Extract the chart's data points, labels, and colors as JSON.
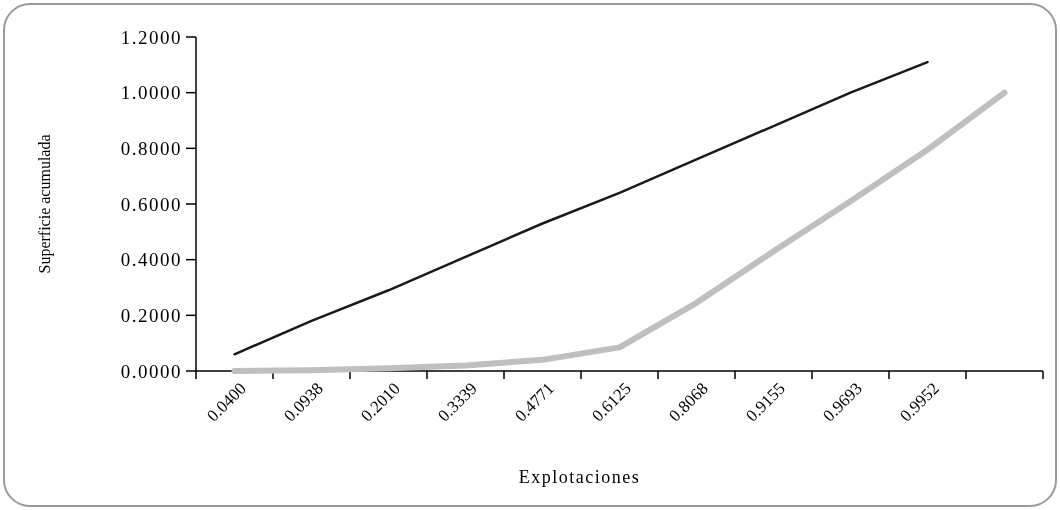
{
  "chart_data": {
    "type": "line",
    "xlabel": "Explotaciones",
    "ylabel": "Superficie acumulada",
    "categories": [
      "0.0400",
      "0.0938",
      "0.2010",
      "0.3339",
      "0.4771",
      "0.6125",
      "0.8068",
      "0.9155",
      "0.9693",
      "0.9952",
      null
    ],
    "ylim": [
      0,
      1.2
    ],
    "yticks": [
      {
        "value": 0,
        "label": "0.0000"
      },
      {
        "value": 0.2,
        "label": "0.2000"
      },
      {
        "value": 0.4,
        "label": "0.4000"
      },
      {
        "value": 0.6,
        "label": "0.6000"
      },
      {
        "value": 0.8,
        "label": "0.8000"
      },
      {
        "value": 1,
        "label": "1.0000"
      },
      {
        "value": 1.2,
        "label": "1.2000"
      }
    ],
    "grid": false,
    "marker": "none",
    "series": [
      {
        "color": "#1a1a1a",
        "values": [
          0.06,
          0.18,
          0.29,
          0.41,
          0.53,
          0.64,
          0.76,
          0.88,
          1.0,
          1.11,
          null
        ]
      },
      {
        "color": "#bfbfc3",
        "values": [
          0,
          0.003,
          0.01,
          0.02,
          0.04,
          0.085,
          0.245,
          0.43,
          0.61,
          0.795,
          1.0
        ]
      }
    ]
  }
}
